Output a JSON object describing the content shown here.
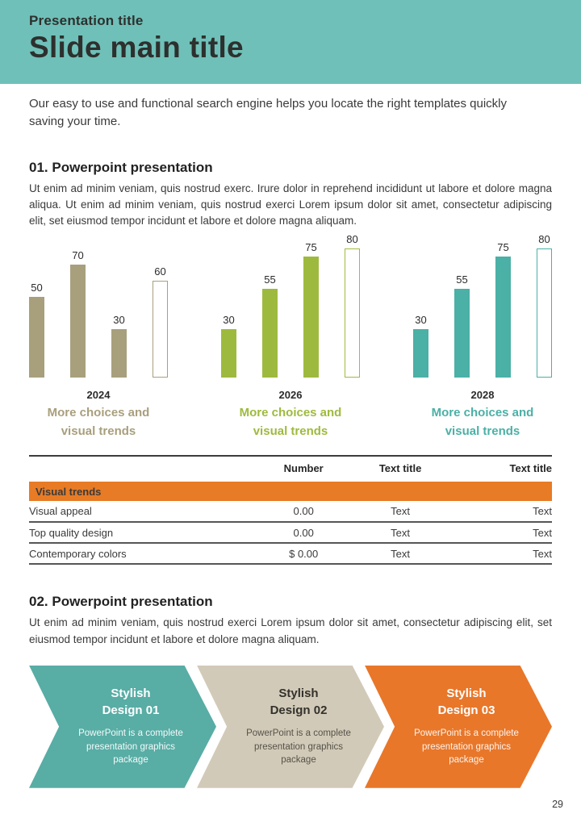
{
  "header": {
    "kicker": "Presentation title",
    "title": "Slide main title",
    "bg_color": "#6fc0b8"
  },
  "intro": "Our easy to use and functional search engine helps you locate the right templates quickly saving your time.",
  "section1": {
    "heading": "01. Powerpoint presentation",
    "body": "Ut enim ad minim veniam, quis nostrud exerc. Irure dolor in reprehend incididunt ut labore et dolore magna aliqua. Ut enim ad minim veniam, quis nostrud exerci  Lorem ipsum dolor sit amet, consectetur adipiscing elit, set eiusmod tempor incidunt et labore et dolore magna aliquam."
  },
  "chart_data": [
    {
      "type": "bar",
      "year": "2024",
      "caption": "More choices and\nvisual trends",
      "values": [
        50,
        70,
        30,
        60
      ],
      "hollow_index": 3,
      "color": "#a89f7d",
      "ylim": [
        0,
        80
      ],
      "data_labels": true,
      "grid": false
    },
    {
      "type": "bar",
      "year": "2026",
      "caption": "More choices and\nvisual trends",
      "values": [
        30,
        55,
        75,
        80
      ],
      "hollow_index": 3,
      "color": "#9eba3e",
      "ylim": [
        0,
        80
      ],
      "data_labels": true,
      "grid": false
    },
    {
      "type": "bar",
      "year": "2028",
      "caption": "More choices and\nvisual trends",
      "values": [
        30,
        55,
        75,
        80
      ],
      "hollow_index": 3,
      "color": "#4bb0a6",
      "ylim": [
        0,
        80
      ],
      "data_labels": true,
      "grid": false
    }
  ],
  "table": {
    "accent_color": "#e87b25",
    "columns": {
      "label": "",
      "number": "Number",
      "text1": "Text title",
      "text2": "Text title"
    },
    "group_header": "Visual trends",
    "rows": [
      {
        "label": "Visual appeal",
        "number": "0.00",
        "text1": "Text",
        "text2": "Text"
      },
      {
        "label": "Top quality design",
        "number": "0.00",
        "text1": "Text",
        "text2": "Text"
      },
      {
        "label": "Contemporary colors",
        "number": "$ 0.00",
        "text1": "Text",
        "text2": "Text"
      }
    ]
  },
  "section2": {
    "heading": "02. Powerpoint presentation",
    "body": "Ut enim ad minim veniam, quis nostrud exerci  Lorem ipsum dolor sit amet, consectetur adipiscing elit, set eiusmod tempor incidunt et labore et dolore magna aliquam."
  },
  "arrows": [
    {
      "title": "Stylish\nDesign 01",
      "body": "PowerPoint is a complete\npresentation graphics\npackage",
      "bg": "#58ada5",
      "title_color": "#ffffff",
      "body_color": "#f2faf9"
    },
    {
      "title": "Stylish\nDesign 02",
      "body": "PowerPoint is a complete\npresentation graphics\npackage",
      "bg": "#d2cab8",
      "title_color": "#33312c",
      "body_color": "#55524a"
    },
    {
      "title": "Stylish\nDesign 03",
      "body": "PowerPoint is a complete\npresentation graphics\npackage",
      "bg": "#e8772a",
      "title_color": "#ffffff",
      "body_color": "#fdf3ec"
    }
  ],
  "page": {
    "number": "29"
  }
}
